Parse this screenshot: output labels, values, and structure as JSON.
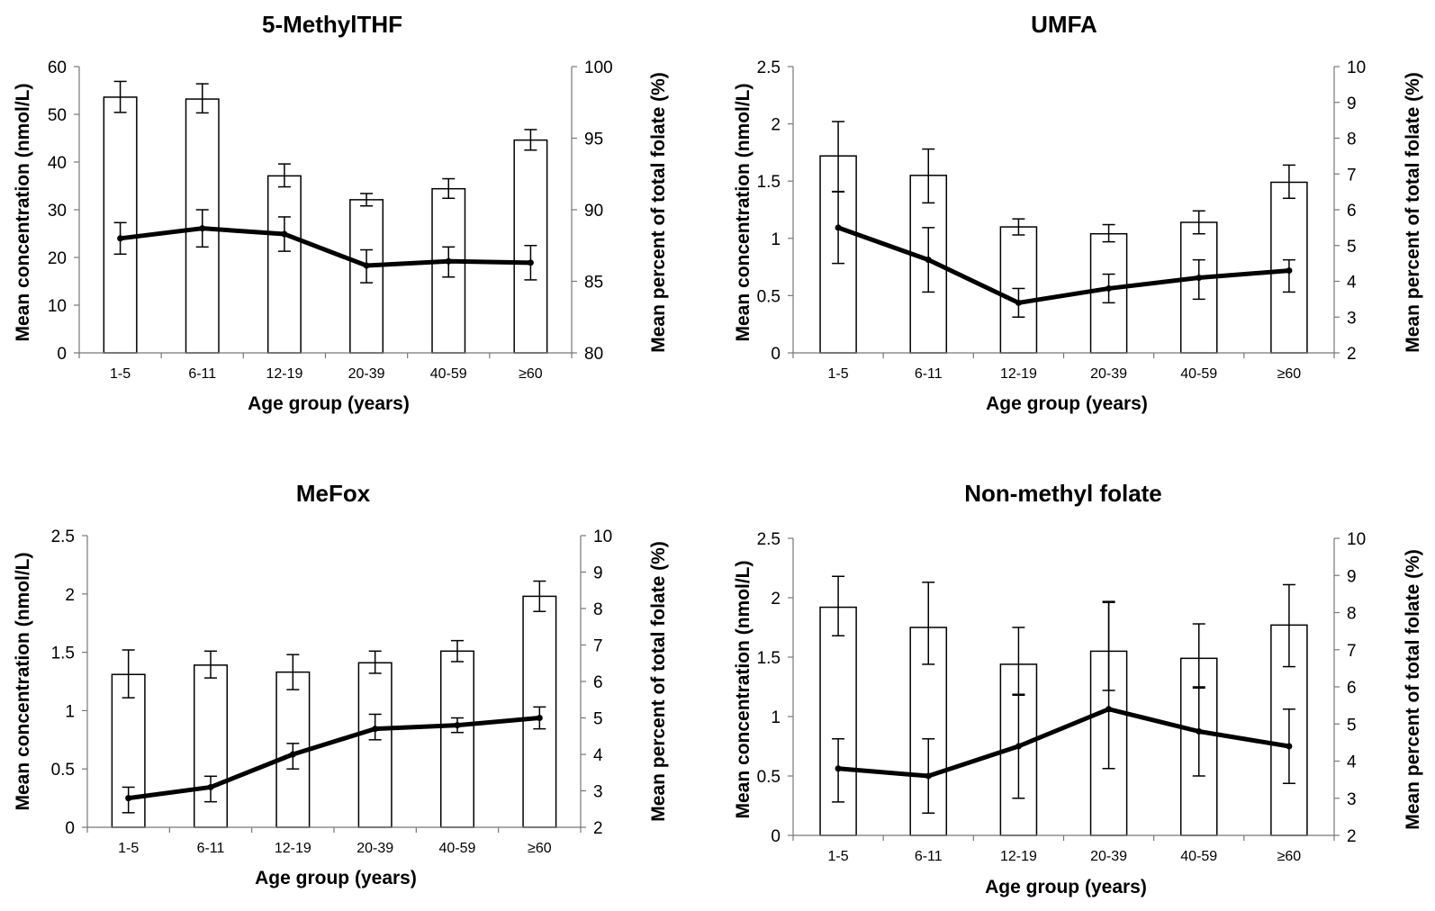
{
  "chart_data": [
    {
      "type": "bar",
      "title": "5-MethylTHF",
      "xlabel": "Age group (years)",
      "ylabel": "Mean concentration (nmol/L)",
      "y2label": "Mean percent of total folate (%)",
      "categories": [
        "1-5",
        "6-11",
        "12-19",
        "20-39",
        "40-59",
        "≥60"
      ],
      "ylim": [
        0,
        60
      ],
      "yticks": [
        0,
        10,
        20,
        30,
        40,
        50,
        60
      ],
      "y2lim": [
        80,
        100
      ],
      "y2ticks": [
        80,
        85,
        90,
        95,
        100
      ],
      "series": [
        {
          "axis": "left",
          "kind": "bar",
          "values": [
            53.6,
            53.2,
            37.1,
            32.1,
            34.4,
            44.6
          ],
          "err_low": [
            50.4,
            50.3,
            34.8,
            30.8,
            32.4,
            42.5
          ],
          "err_high": [
            56.9,
            56.4,
            39.6,
            33.4,
            36.5,
            46.8
          ]
        },
        {
          "axis": "right",
          "kind": "line",
          "values": [
            88.0,
            88.7,
            88.3,
            86.1,
            86.4,
            86.3
          ],
          "err_low": [
            86.9,
            87.4,
            87.1,
            84.9,
            85.3,
            85.1
          ],
          "err_high": [
            89.1,
            90.0,
            89.5,
            87.2,
            87.4,
            87.5
          ]
        }
      ]
    },
    {
      "type": "bar",
      "title": "UMFA",
      "xlabel": "Age group (years)",
      "ylabel": "Mean concentration (nmol/L)",
      "y2label": "Mean percent of total folate (%)",
      "categories": [
        "1-5",
        "6-11",
        "12-19",
        "20-39",
        "40-59",
        "≥60"
      ],
      "ylim": [
        0,
        2.5
      ],
      "yticks": [
        0,
        0.5,
        1,
        1.5,
        2,
        2.5
      ],
      "y2lim": [
        2,
        10
      ],
      "y2ticks": [
        2,
        3,
        4,
        5,
        6,
        7,
        8,
        9,
        10
      ],
      "series": [
        {
          "axis": "left",
          "kind": "bar",
          "values": [
            1.72,
            1.55,
            1.1,
            1.04,
            1.14,
            1.49
          ],
          "err_low": [
            1.41,
            1.31,
            1.03,
            0.97,
            1.04,
            1.35
          ],
          "err_high": [
            2.02,
            1.78,
            1.17,
            1.12,
            1.24,
            1.64
          ]
        },
        {
          "axis": "right",
          "kind": "line",
          "values": [
            5.5,
            4.6,
            3.4,
            3.8,
            4.1,
            4.3
          ],
          "err_low": [
            4.5,
            3.7,
            3.0,
            3.4,
            3.5,
            3.7
          ],
          "err_high": [
            6.5,
            5.5,
            3.8,
            4.2,
            4.6,
            4.6
          ]
        }
      ]
    },
    {
      "type": "bar",
      "title": "MeFox",
      "xlabel": "Age group (years)",
      "ylabel": "Mean concentration (nmol/L)",
      "y2label": "Mean percent of total folate (%)",
      "categories": [
        "1-5",
        "6-11",
        "12-19",
        "20-39",
        "40-59",
        "≥60"
      ],
      "ylim": [
        0,
        2.5
      ],
      "yticks": [
        0,
        0.5,
        1,
        1.5,
        2,
        2.5
      ],
      "y2lim": [
        2,
        10
      ],
      "y2ticks": [
        2,
        3,
        4,
        5,
        6,
        7,
        8,
        9,
        10
      ],
      "series": [
        {
          "axis": "left",
          "kind": "bar",
          "values": [
            1.31,
            1.39,
            1.33,
            1.41,
            1.51,
            1.98
          ],
          "err_low": [
            1.11,
            1.28,
            1.18,
            1.32,
            1.42,
            1.85
          ],
          "err_high": [
            1.52,
            1.51,
            1.48,
            1.51,
            1.6,
            2.11
          ]
        },
        {
          "axis": "right",
          "kind": "line",
          "values": [
            2.8,
            3.1,
            4.0,
            4.7,
            4.8,
            5.0
          ],
          "err_low": [
            2.4,
            2.7,
            3.6,
            4.4,
            4.6,
            4.7
          ],
          "err_high": [
            3.1,
            3.4,
            4.3,
            5.1,
            5.0,
            5.3
          ]
        }
      ]
    },
    {
      "type": "bar",
      "title": "Non-methyl folate",
      "xlabel": "Age group (years)",
      "ylabel": "Mean concentration (nmol/L)",
      "y2label": "Mean percent of total folate (%)",
      "categories": [
        "1-5",
        "6-11",
        "12-19",
        "20-39",
        "40-59",
        "≥60"
      ],
      "ylim": [
        0,
        2.5
      ],
      "yticks": [
        0,
        0.5,
        1,
        1.5,
        2,
        2.5
      ],
      "y2lim": [
        2,
        10
      ],
      "y2ticks": [
        2,
        3,
        4,
        5,
        6,
        7,
        8,
        9,
        10
      ],
      "series": [
        {
          "axis": "left",
          "kind": "bar",
          "values": [
            1.92,
            1.75,
            1.44,
            1.55,
            1.49,
            1.77
          ],
          "err_low": [
            1.68,
            1.44,
            1.18,
            1.22,
            1.24,
            1.42
          ],
          "err_high": [
            2.18,
            2.13,
            1.75,
            1.96,
            1.78,
            2.11
          ]
        },
        {
          "axis": "right",
          "kind": "line",
          "values": [
            3.8,
            3.6,
            4.4,
            5.4,
            4.8,
            4.4
          ],
          "err_low": [
            2.9,
            2.6,
            3.0,
            3.8,
            3.6,
            3.4
          ],
          "err_high": [
            4.6,
            4.6,
            5.8,
            8.3,
            6.0,
            5.4
          ]
        }
      ]
    }
  ]
}
